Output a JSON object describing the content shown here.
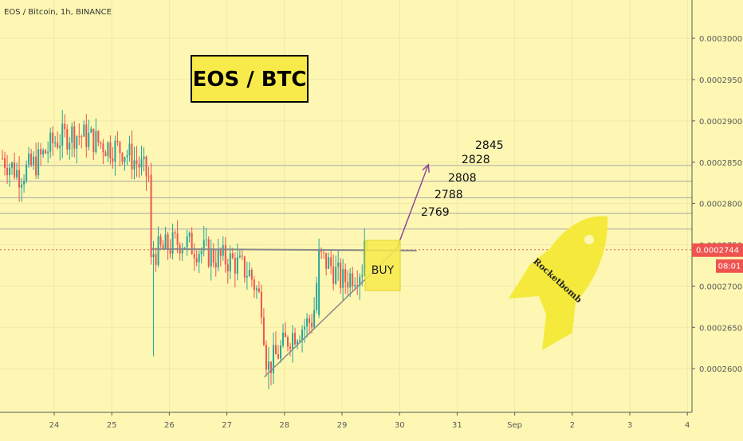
{
  "legend": "EOS / Bitcoin, 1h, BINANCE",
  "colors": {
    "background": "#fdf7b3",
    "up": "#26a69a",
    "down": "#ef5350",
    "annotation_box": "#f7ea4a",
    "arrow": "#8e4b9a",
    "trendline": "#8a8a8a",
    "current_price_tag": "#ef5350"
  },
  "annotations": {
    "title_box": "EOS / BTC",
    "buy_label": "BUY",
    "rocket_label": "Rocketbomb"
  },
  "current_price": {
    "value": "0.0002744",
    "countdown": "08:01"
  },
  "chart_data": {
    "type": "candlestick",
    "title": "",
    "xlabel": "",
    "ylabel": "",
    "x_ticks": [
      "24",
      "25",
      "26",
      "27",
      "28",
      "29",
      "30",
      "31",
      "Sep",
      "2",
      "3",
      "4"
    ],
    "y_ticks": [
      "0.0002600",
      "0.0002650",
      "0.0002700",
      "0.0002750",
      "0.0002800",
      "0.0002850",
      "0.0002900",
      "0.0002950",
      "0.0003000"
    ],
    "ylim": [
      0.000255,
      0.000303
    ],
    "horizontal_levels": [
      "0.0002846",
      "0.0002827",
      "0.0002807",
      "0.0002788",
      "0.0002769"
    ],
    "targets": [
      "2845",
      "2828",
      "2808",
      "2788",
      "2769"
    ],
    "price_path": [
      {
        "x": 23.1,
        "y": 0.0002855
      },
      {
        "x": 23.4,
        "y": 0.0002835
      },
      {
        "x": 23.7,
        "y": 0.000285
      },
      {
        "x": 24.0,
        "y": 0.0002875
      },
      {
        "x": 24.3,
        "y": 0.0002885
      },
      {
        "x": 24.6,
        "y": 0.000288
      },
      {
        "x": 24.9,
        "y": 0.000287
      },
      {
        "x": 25.2,
        "y": 0.0002865
      },
      {
        "x": 25.5,
        "y": 0.0002845
      },
      {
        "x": 25.65,
        "y": 0.000283
      },
      {
        "x": 25.7,
        "y": 0.000274
      },
      {
        "x": 25.9,
        "y": 0.0002745
      },
      {
        "x": 26.2,
        "y": 0.0002755
      },
      {
        "x": 26.5,
        "y": 0.0002745
      },
      {
        "x": 26.8,
        "y": 0.0002735
      },
      {
        "x": 27.1,
        "y": 0.000273
      },
      {
        "x": 27.4,
        "y": 0.0002715
      },
      {
        "x": 27.6,
        "y": 0.000268
      },
      {
        "x": 27.7,
        "y": 0.00026
      },
      {
        "x": 27.9,
        "y": 0.000262
      },
      {
        "x": 28.1,
        "y": 0.000264
      },
      {
        "x": 28.3,
        "y": 0.000265
      },
      {
        "x": 28.5,
        "y": 0.000266
      },
      {
        "x": 28.6,
        "y": 0.0002735
      },
      {
        "x": 28.8,
        "y": 0.0002725
      },
      {
        "x": 29.0,
        "y": 0.0002705
      },
      {
        "x": 29.2,
        "y": 0.0002715
      },
      {
        "x": 29.4,
        "y": 0.0002725
      },
      {
        "x": 29.45,
        "y": 0.0002744
      }
    ],
    "support_line": {
      "x1": 25.7,
      "y1": 0.0002745,
      "x2": 29.95,
      "y2": 0.0002743
    },
    "trend_line": {
      "x1": 27.65,
      "y1": 0.000259,
      "x2": 29.95,
      "y2": 0.0002745
    },
    "projection_arrow": {
      "x1": 29.95,
      "y1": 0.0002745,
      "x2": 30.5,
      "y2": 0.0002847
    }
  }
}
